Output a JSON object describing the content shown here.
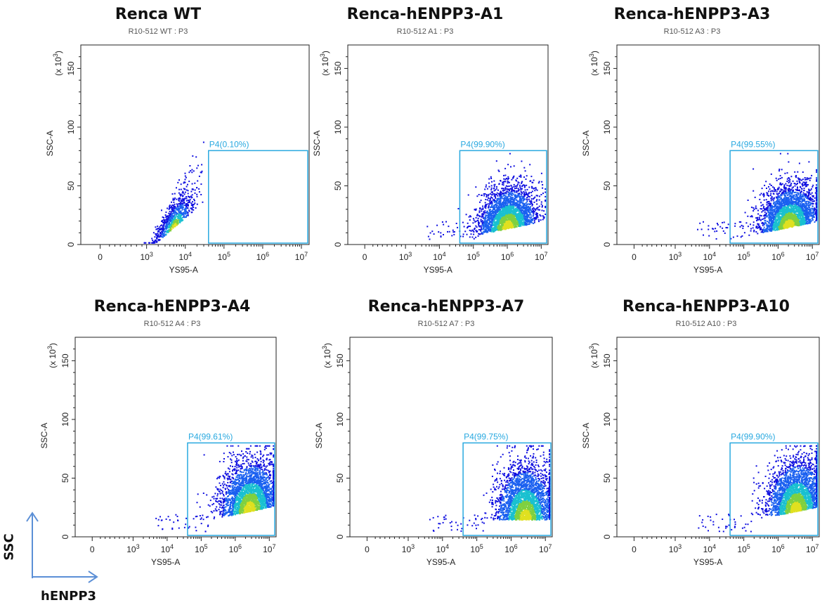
{
  "chart_data": [
    {
      "type": "scatter",
      "title": "Renca WT",
      "subtitle": "R10-512  WT : P3",
      "xlabel": "YS95-A",
      "ylabel": "SSC-A",
      "yunit": "(x 10^3)",
      "xticks": [
        "0",
        "10^3",
        "10^4",
        "10^5",
        "10^6",
        "10^7"
      ],
      "yticks": [
        "0",
        "50",
        "100",
        "150"
      ],
      "ylim": [
        0,
        170
      ],
      "gate": {
        "name": "P4",
        "percent": "P4(0.10%)",
        "x_range": [
          "4x10^4",
          "1.2x10^7"
        ],
        "y_range": [
          0,
          80
        ]
      },
      "cluster": {
        "x_decade_center": 3.7,
        "y_center": 15
      }
    },
    {
      "type": "scatter",
      "title": "Renca-hENPP3-A1",
      "subtitle": "R10-512  A1 : P3",
      "xlabel": "YS95-A",
      "ylabel": "SSC-A",
      "yunit": "(x 10^3)",
      "xticks": [
        "0",
        "10^3",
        "10^4",
        "10^5",
        "10^6",
        "10^7"
      ],
      "yticks": [
        "0",
        "50",
        "100",
        "150"
      ],
      "ylim": [
        0,
        170
      ],
      "gate": {
        "name": "P4",
        "percent": "P4(99.90%)",
        "x_range": [
          "4x10^4",
          "1.2x10^7"
        ],
        "y_range": [
          0,
          80
        ]
      },
      "cluster": {
        "x_decade_center": 6.0,
        "y_center": 14
      }
    },
    {
      "type": "scatter",
      "title": "Renca-hENPP3-A3",
      "subtitle": "R10-512  A3 : P3",
      "xlabel": "YS95-A",
      "ylabel": "SSC-A",
      "yunit": "(x 10^3)",
      "xticks": [
        "0",
        "10^3",
        "10^4",
        "10^5",
        "10^6",
        "10^7"
      ],
      "yticks": [
        "0",
        "50",
        "100",
        "150"
      ],
      "ylim": [
        0,
        170
      ],
      "gate": {
        "name": "P4",
        "percent": "P4(99.55%)",
        "x_range": [
          "4x10^4",
          "1.2x10^7"
        ],
        "y_range": [
          0,
          80
        ]
      },
      "cluster": {
        "x_decade_center": 6.3,
        "y_center": 15
      }
    },
    {
      "type": "scatter",
      "title": "Renca-hENPP3-A4",
      "subtitle": "R10-512  A4 : P3",
      "xlabel": "YS95-A",
      "ylabel": "SSC-A",
      "yunit": "(x 10^3)",
      "xticks": [
        "0",
        "10^3",
        "10^4",
        "10^5",
        "10^6",
        "10^7"
      ],
      "yticks": [
        "0",
        "50",
        "100",
        "150"
      ],
      "ylim": [
        0,
        170
      ],
      "gate": {
        "name": "P4",
        "percent": "P4(99.61%)",
        "x_range": [
          "4x10^4",
          "1.2x10^7"
        ],
        "y_range": [
          0,
          80
        ]
      },
      "cluster": {
        "x_decade_center": 6.4,
        "y_center": 22
      }
    },
    {
      "type": "scatter",
      "title": "Renca-hENPP3-A7",
      "subtitle": "R10-512  A7 : P3",
      "xlabel": "YS95-A",
      "ylabel": "SSC-A",
      "yunit": "(x 10^3)",
      "xticks": [
        "0",
        "10^3",
        "10^4",
        "10^5",
        "10^6",
        "10^7"
      ],
      "yticks": [
        "0",
        "50",
        "100",
        "150"
      ],
      "ylim": [
        0,
        170
      ],
      "gate": {
        "name": "P4",
        "percent": "P4(99.75%)",
        "x_range": [
          "4x10^4",
          "1.2x10^7"
        ],
        "y_range": [
          0,
          80
        ]
      },
      "cluster": {
        "x_decade_center": 6.4,
        "y_center": 15
      }
    },
    {
      "type": "scatter",
      "title": "Renca-hENPP3-A10",
      "subtitle": "R10-512  A10 : P3",
      "xlabel": "YS95-A",
      "ylabel": "SSC-A",
      "yunit": "(x 10^3)",
      "xticks": [
        "0",
        "10^3",
        "10^4",
        "10^5",
        "10^6",
        "10^7"
      ],
      "yticks": [
        "0",
        "50",
        "100",
        "150"
      ],
      "ylim": [
        0,
        170
      ],
      "gate": {
        "name": "P4",
        "percent": "P4(99.90%)",
        "x_range": [
          "4x10^4",
          "1.2x10^7"
        ],
        "y_range": [
          0,
          80
        ]
      },
      "cluster": {
        "x_decade_center": 6.5,
        "y_center": 22
      }
    }
  ],
  "legend": {
    "y_axis": "SSC",
    "x_axis": "hENPP3"
  },
  "colors": {
    "gate": "#29a9e0",
    "arrow": "#5b8fd6",
    "density_low": "#1010e0",
    "density_mid": "#19c0d0",
    "density_high": "#e0e020"
  }
}
